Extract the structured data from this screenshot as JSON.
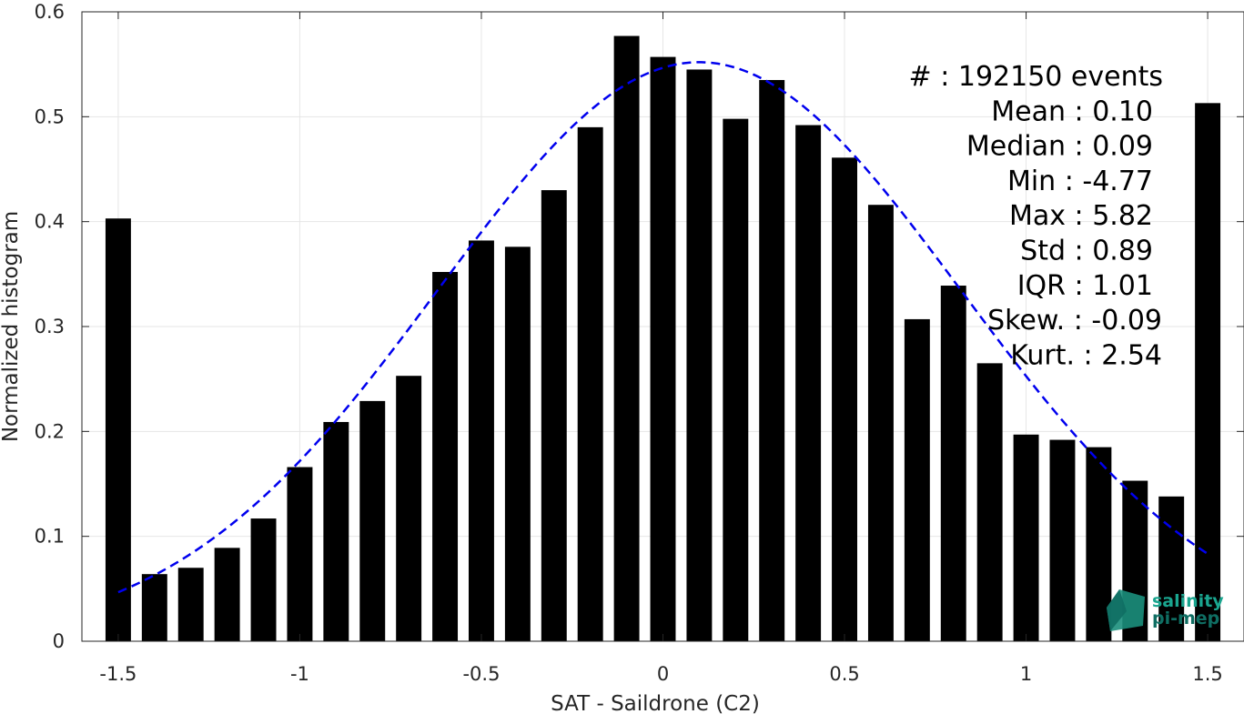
{
  "chart_data": {
    "type": "bar",
    "title": "",
    "xlabel": "SAT - Saildrone (C2)",
    "ylabel": "Normalized histogram",
    "xlim": [
      -1.6,
      1.6
    ],
    "ylim": [
      0,
      0.6
    ],
    "xticks": [
      -1.5,
      -1,
      -0.5,
      0,
      0.5,
      1,
      1.5
    ],
    "xtick_labels": [
      "-1.5",
      "-1",
      "-0.5",
      "0",
      "0.5",
      "1",
      "1.5"
    ],
    "yticks": [
      0,
      0.1,
      0.2,
      0.3,
      0.4,
      0.5,
      0.6
    ],
    "ytick_labels": [
      "0",
      "0.1",
      "0.2",
      "0.3",
      "0.4",
      "0.5",
      "0.6"
    ],
    "grid": true,
    "bar_width": 0.07,
    "x": [
      -1.5,
      -1.4,
      -1.3,
      -1.2,
      -1.1,
      -1.0,
      -0.9,
      -0.8,
      -0.7,
      -0.6,
      -0.5,
      -0.4,
      -0.3,
      -0.2,
      -0.1,
      0.0,
      0.1,
      0.2,
      0.3,
      0.4,
      0.5,
      0.6,
      0.7,
      0.8,
      0.9,
      1.0,
      1.1,
      1.2,
      1.3,
      1.4,
      1.5
    ],
    "values": [
      0.403,
      0.064,
      0.07,
      0.089,
      0.117,
      0.166,
      0.209,
      0.229,
      0.253,
      0.352,
      0.382,
      0.376,
      0.43,
      0.49,
      0.577,
      0.557,
      0.545,
      0.498,
      0.535,
      0.492,
      0.461,
      0.416,
      0.307,
      0.339,
      0.265,
      0.197,
      0.192,
      0.185,
      0.153,
      0.138,
      0.513
    ],
    "bar_color": "#000000",
    "fit_curve": {
      "type": "gaussian",
      "style": "dashed",
      "color": "#0000ee",
      "mean": 0.1,
      "std": 0.72,
      "peak": 0.552,
      "x_range": [
        -1.5,
        1.5
      ]
    },
    "stats": [
      "#  : 192150 events",
      "Mean : 0.10",
      "Median : 0.09",
      "Min : -4.77",
      "Max : 5.82",
      "Std : 0.89",
      "IQR : 1.01",
      "Skew. : -0.09",
      "Kurt. : 2.54"
    ]
  },
  "logo": {
    "line1": "salinity",
    "line2": "pi-mep",
    "color_top": "#1aa58f",
    "color_bottom": "#0f6e63"
  }
}
